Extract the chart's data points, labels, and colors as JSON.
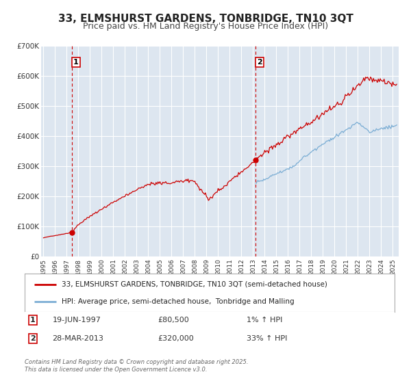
{
  "title": "33, ELMSHURST GARDENS, TONBRIDGE, TN10 3QT",
  "subtitle": "Price paid vs. HM Land Registry's House Price Index (HPI)",
  "title_fontsize": 11,
  "subtitle_fontsize": 9,
  "background_color": "#ffffff",
  "plot_bg_color": "#dde6f0",
  "grid_color": "#ffffff",
  "red_line_color": "#cc0000",
  "blue_line_color": "#7aadd4",
  "marker1_date": 1997.47,
  "marker1_value": 80500,
  "marker2_date": 2013.23,
  "marker2_value": 320000,
  "vline_color": "#cc0000",
  "ylim_min": 0,
  "ylim_max": 700000,
  "xlim_min": 1994.8,
  "xlim_max": 2025.5,
  "ylabel_ticks": [
    0,
    100000,
    200000,
    300000,
    400000,
    500000,
    600000,
    700000
  ],
  "ylabel_labels": [
    "£0",
    "£100K",
    "£200K",
    "£300K",
    "£400K",
    "£500K",
    "£600K",
    "£700K"
  ],
  "legend_label_red": "33, ELMSHURST GARDENS, TONBRIDGE, TN10 3QT (semi-detached house)",
  "legend_label_blue": "HPI: Average price, semi-detached house,  Tonbridge and Malling",
  "annotation1_num": "1",
  "annotation1_date": "19-JUN-1997",
  "annotation1_price": "£80,500",
  "annotation1_hpi": "1% ↑ HPI",
  "annotation2_num": "2",
  "annotation2_date": "28-MAR-2013",
  "annotation2_price": "£320,000",
  "annotation2_hpi": "33% ↑ HPI",
  "footer": "Contains HM Land Registry data © Crown copyright and database right 2025.\nThis data is licensed under the Open Government Licence v3.0."
}
